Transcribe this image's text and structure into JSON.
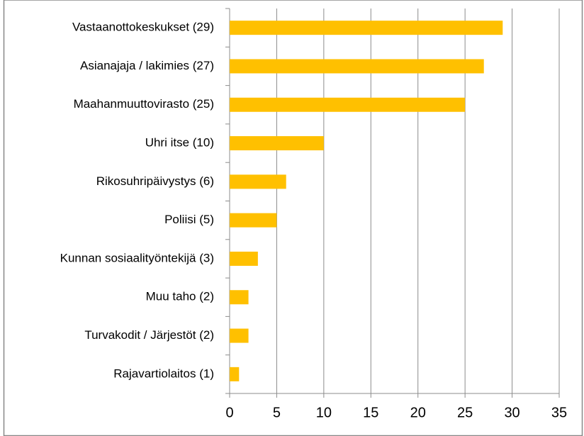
{
  "chart_data": {
    "type": "bar",
    "categories": [
      "Vastaanottokeskukset (29)",
      "Asianajaja / lakimies (27)",
      "Maahanmuuttovirasto (25)",
      "Uhri itse (10)",
      "Rikosuhripäivystys (6)",
      "Poliisi (5)",
      "Kunnan sosiaalityöntekijä (3)",
      "Muu taho (2)",
      "Turvakodit / Järjestöt (2)",
      "Rajavartiolaitos (1)"
    ],
    "values": [
      29,
      27,
      25,
      10,
      6,
      5,
      3,
      2,
      2,
      1
    ],
    "color": "#ffc000",
    "xlim": [
      0,
      35
    ],
    "xticks": [
      0,
      5,
      10,
      15,
      20,
      25,
      30,
      35
    ],
    "grid": true
  }
}
